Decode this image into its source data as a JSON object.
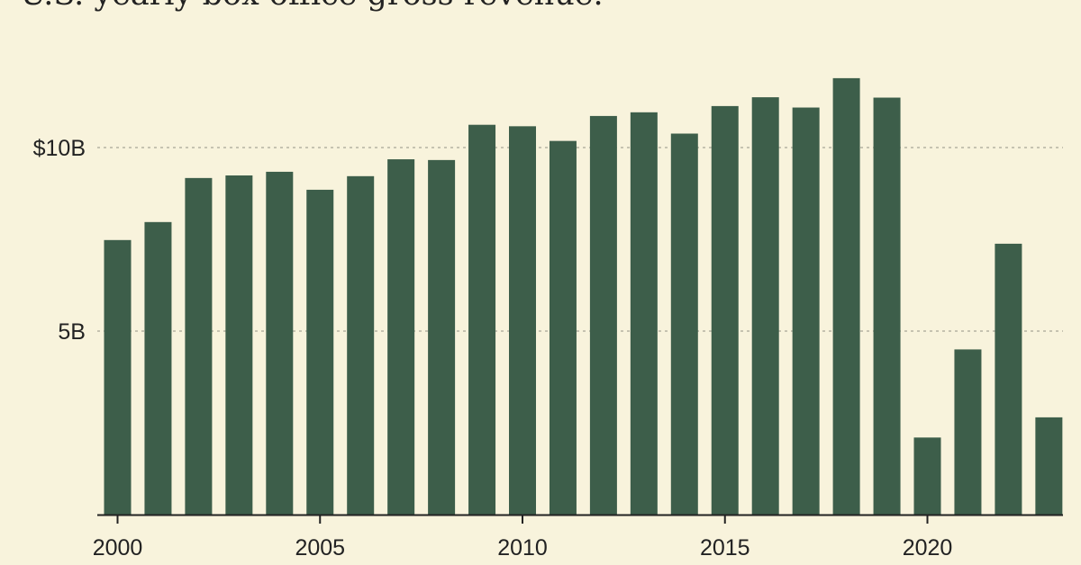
{
  "chart_data": {
    "type": "bar",
    "title": "U.S. yearly box office gross revenue.",
    "xlabel": "",
    "ylabel": "",
    "ylim": [
      0,
      12.5
    ],
    "grid": "horizontal-dashed",
    "legend": "none",
    "x": [
      2000,
      2001,
      2002,
      2003,
      2004,
      2005,
      2006,
      2007,
      2008,
      2009,
      2010,
      2011,
      2012,
      2013,
      2014,
      2015,
      2016,
      2017,
      2018,
      2019,
      2020,
      2021,
      2022,
      2023
    ],
    "values": [
      7.48,
      7.97,
      9.17,
      9.24,
      9.34,
      8.85,
      9.22,
      9.68,
      9.66,
      10.62,
      10.58,
      10.18,
      10.86,
      10.96,
      10.38,
      11.13,
      11.37,
      11.09,
      11.89,
      11.36,
      2.1,
      4.5,
      7.38,
      2.65
    ],
    "x_ticks": [
      {
        "value": 2000,
        "label": "2000"
      },
      {
        "value": 2005,
        "label": "2005"
      },
      {
        "value": 2010,
        "label": "2010"
      },
      {
        "value": 2015,
        "label": "2015"
      },
      {
        "value": 2020,
        "label": "2020"
      }
    ],
    "y_ticks": [
      {
        "value": 5,
        "label": "5B"
      },
      {
        "value": 10,
        "label": "$10B"
      }
    ],
    "colors": {
      "bar": "#3d5e4a",
      "background": "#f8f3dc",
      "grid": "#a9a697",
      "axis": "#222222",
      "text": "#222222"
    }
  }
}
